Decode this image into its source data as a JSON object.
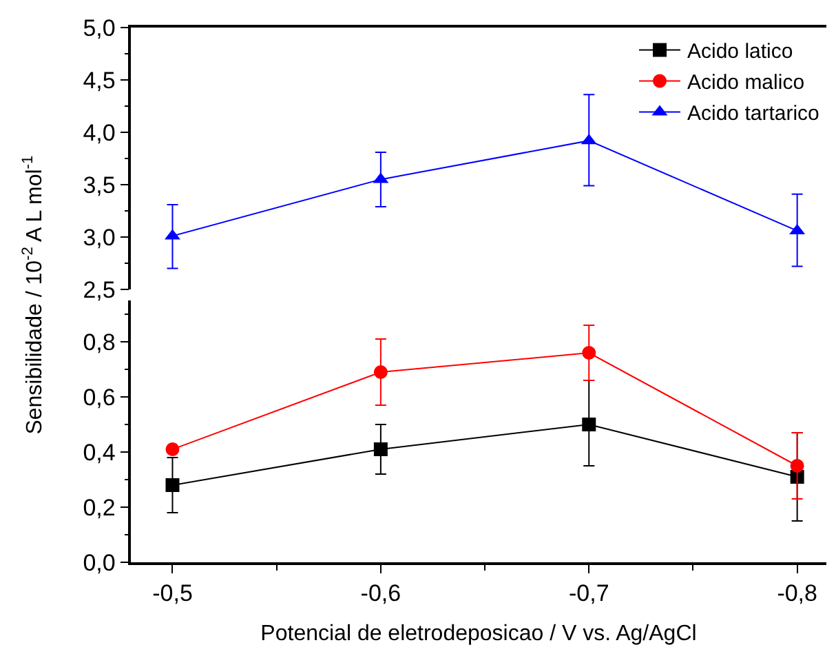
{
  "chart_data": [
    {
      "type": "line",
      "x": [
        -0.5,
        -0.6,
        -0.7,
        -0.8
      ],
      "xlim": [
        -0.48,
        -0.814
      ],
      "ylim": [
        2.5,
        5.0
      ],
      "yticks": [
        {
          "value": 2.5,
          "label": "2,5"
        },
        {
          "value": 3.0,
          "label": "3,0"
        },
        {
          "value": 3.5,
          "label": "3,5"
        },
        {
          "value": 4.0,
          "label": "4,0"
        },
        {
          "value": 4.5,
          "label": "4,5"
        },
        {
          "value": 5.0,
          "label": "5,0"
        }
      ],
      "tick_labels": "y",
      "marker": "triangle",
      "legend": "top right",
      "series": [
        {
          "name": "Acido tartarico",
          "color": "#0000ff",
          "values": [
            3.01,
            3.55,
            3.92,
            3.06
          ],
          "errors": [
            [
              2.7,
              3.31
            ],
            [
              3.29,
              3.81
            ],
            [
              3.49,
              4.36
            ],
            [
              2.72,
              3.41
            ]
          ]
        }
      ]
    },
    {
      "type": "line",
      "x": [
        -0.5,
        -0.6,
        -0.7,
        -0.8
      ],
      "xlim": [
        -0.48,
        -0.814
      ],
      "xticks": [
        {
          "value": -0.5,
          "label": "-0,5"
        },
        {
          "value": -0.6,
          "label": "-0,6"
        },
        {
          "value": -0.7,
          "label": "-0,7"
        },
        {
          "value": -0.8,
          "label": "-0,8"
        }
      ],
      "ylim": [
        0,
        0.95
      ],
      "yticks": [
        {
          "value": 0,
          "label": "0,0"
        },
        {
          "value": 0.2,
          "label": "0,2"
        },
        {
          "value": 0.4,
          "label": "0,4"
        },
        {
          "value": 0.6,
          "label": "0,6"
        },
        {
          "value": 0.8,
          "label": "0,8"
        }
      ],
      "xlabel": "Potencial de eletrodeposicao / V vs. Ag/AgCl",
      "ylabel": "Sensibilidade / 10$^{-2}$ A L mol$^{-1}$",
      "legend": "top right",
      "series": [
        {
          "name": "Acido latico",
          "color": "#000000",
          "marker": "square",
          "values": [
            0.28,
            0.41,
            0.5,
            0.31
          ],
          "errors": [
            [
              0.18,
              0.38
            ],
            [
              0.32,
              0.5
            ],
            [
              0.35,
              0.66
            ],
            [
              0.15,
              0.47
            ]
          ]
        },
        {
          "name": "Acido malico",
          "color": "#ff0000",
          "marker": "circle",
          "values": [
            0.41,
            0.69,
            0.76,
            0.35
          ],
          "errors": [
            [
              0.4,
              0.42
            ],
            [
              0.57,
              0.81
            ],
            [
              0.66,
              0.86
            ],
            [
              0.23,
              0.47
            ]
          ]
        }
      ]
    }
  ]
}
